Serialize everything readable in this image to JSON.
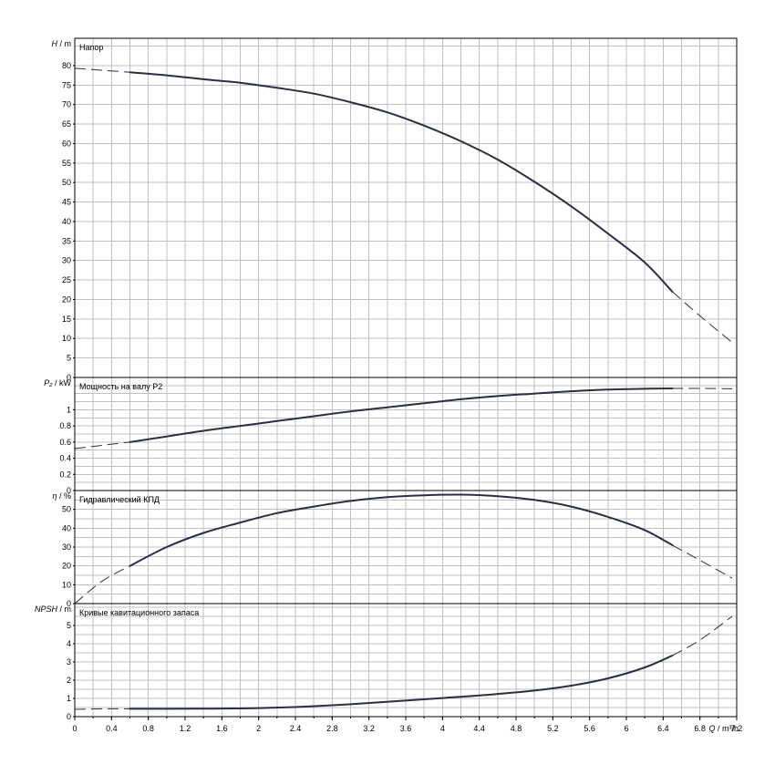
{
  "chart_data": {
    "type": "line",
    "x_axis": {
      "label_symbol": "Q",
      "label_unit": "/ m³/h",
      "range": [
        0,
        7.2
      ],
      "minor_step": 0.2,
      "tick_labels": [
        "0",
        "0.4",
        "0.8",
        "1.2",
        "1.6",
        "2",
        "2.4",
        "2.8",
        "3.2",
        "3.6",
        "4",
        "4.4",
        "4.8",
        "5.2",
        "5.6",
        "6",
        "6.4",
        "6.8",
        "7.2"
      ],
      "tick_values": [
        0,
        0.4,
        0.8,
        1.2,
        1.6,
        2,
        2.4,
        2.8,
        3.2,
        3.6,
        4,
        4.4,
        4.8,
        5.2,
        5.6,
        6,
        6.4,
        6.8,
        7.2
      ]
    },
    "panels": [
      {
        "id": "head",
        "title": "Напор",
        "ylabel_symbol": "H",
        "ylabel_unit": "/ m",
        "ylim": [
          0,
          87
        ],
        "grid_step": 5,
        "tick_values": [
          0,
          5,
          10,
          15,
          20,
          25,
          30,
          35,
          40,
          45,
          50,
          55,
          60,
          65,
          70,
          75,
          80
        ],
        "tick_labels": [
          "0",
          "5",
          "10",
          "15",
          "20",
          "25",
          "30",
          "35",
          "40",
          "45",
          "50",
          "55",
          "60",
          "65",
          "70",
          "75",
          "80"
        ],
        "solid": [
          [
            0.6,
            78.3
          ],
          [
            1.0,
            77.5
          ],
          [
            1.4,
            76.5
          ],
          [
            1.8,
            75.6
          ],
          [
            2.2,
            74.3
          ],
          [
            2.6,
            72.8
          ],
          [
            3.0,
            70.6
          ],
          [
            3.4,
            68.0
          ],
          [
            3.8,
            64.6
          ],
          [
            4.2,
            60.6
          ],
          [
            4.6,
            55.9
          ],
          [
            5.0,
            50.2
          ],
          [
            5.4,
            43.9
          ],
          [
            5.8,
            36.9
          ],
          [
            6.2,
            29.5
          ],
          [
            6.5,
            22.0
          ]
        ],
        "dashed": [
          [
            0,
            79.3
          ],
          [
            0.3,
            78.8
          ],
          [
            0.6,
            78.3
          ]
        ],
        "dashed_tail": [
          [
            6.5,
            22.0
          ],
          [
            6.8,
            15.8
          ],
          [
            7.15,
            9.0
          ]
        ]
      },
      {
        "id": "power",
        "title": "Мощность на валу P2",
        "ylabel_symbol": "P₂",
        "ylabel_unit": "/ kW",
        "ylim": [
          0,
          1.4
        ],
        "grid_step": 0.1,
        "tick_values": [
          0,
          0.2,
          0.4,
          0.6,
          0.8,
          1.0
        ],
        "tick_labels": [
          "0",
          "0.2",
          "0.4",
          "0.6",
          "0.8",
          "1"
        ],
        "solid": [
          [
            0.6,
            0.6
          ],
          [
            1.0,
            0.67
          ],
          [
            1.4,
            0.74
          ],
          [
            1.8,
            0.8
          ],
          [
            2.2,
            0.86
          ],
          [
            2.6,
            0.92
          ],
          [
            3.0,
            0.98
          ],
          [
            3.4,
            1.03
          ],
          [
            3.8,
            1.08
          ],
          [
            4.2,
            1.13
          ],
          [
            4.6,
            1.17
          ],
          [
            5.0,
            1.2
          ],
          [
            5.4,
            1.23
          ],
          [
            5.8,
            1.25
          ],
          [
            6.2,
            1.26
          ],
          [
            6.5,
            1.265
          ]
        ],
        "dashed": [
          [
            0,
            0.52
          ],
          [
            0.3,
            0.56
          ],
          [
            0.6,
            0.6
          ]
        ],
        "dashed_tail": [
          [
            6.5,
            1.265
          ],
          [
            6.8,
            1.265
          ],
          [
            7.15,
            1.26
          ]
        ]
      },
      {
        "id": "efficiency",
        "title": "Гидравлический КПД",
        "ylabel_symbol": "η",
        "ylabel_unit": "/ %",
        "ylim": [
          0,
          60
        ],
        "grid_step": 5,
        "tick_values": [
          0,
          10,
          20,
          30,
          40,
          50
        ],
        "tick_labels": [
          "0",
          "10",
          "20",
          "30",
          "40",
          "50"
        ],
        "solid": [
          [
            0.6,
            20
          ],
          [
            1.0,
            30
          ],
          [
            1.4,
            37.5
          ],
          [
            1.8,
            43
          ],
          [
            2.2,
            48
          ],
          [
            2.6,
            51.5
          ],
          [
            3.0,
            54.5
          ],
          [
            3.4,
            56.5
          ],
          [
            3.8,
            57.5
          ],
          [
            4.2,
            57.8
          ],
          [
            4.6,
            57
          ],
          [
            5.0,
            55
          ],
          [
            5.4,
            51.5
          ],
          [
            5.8,
            46
          ],
          [
            6.2,
            39
          ],
          [
            6.5,
            31
          ]
        ],
        "dashed": [
          [
            0,
            0
          ],
          [
            0.3,
            12
          ],
          [
            0.6,
            20
          ]
        ],
        "dashed_tail": [
          [
            6.5,
            31
          ],
          [
            6.8,
            23
          ],
          [
            7.15,
            13.5
          ]
        ]
      },
      {
        "id": "npsh",
        "title": "Кривые кавитационного запаса",
        "ylabel_symbol": "NPSH",
        "ylabel_unit": "/ m",
        "ylim": [
          0,
          6.2
        ],
        "grid_step": 0.5,
        "tick_values": [
          0,
          1,
          2,
          3,
          4,
          5
        ],
        "tick_labels": [
          "0",
          "1",
          "2",
          "3",
          "4",
          "5"
        ],
        "solid": [
          [
            0.6,
            0.43
          ],
          [
            1.0,
            0.43
          ],
          [
            1.5,
            0.44
          ],
          [
            2.0,
            0.47
          ],
          [
            2.5,
            0.55
          ],
          [
            3.0,
            0.68
          ],
          [
            3.5,
            0.85
          ],
          [
            4.0,
            1.02
          ],
          [
            4.5,
            1.2
          ],
          [
            5.0,
            1.43
          ],
          [
            5.4,
            1.7
          ],
          [
            5.8,
            2.1
          ],
          [
            6.2,
            2.7
          ],
          [
            6.5,
            3.35
          ]
        ],
        "dashed": [
          [
            0,
            0.4
          ],
          [
            0.3,
            0.43
          ],
          [
            0.6,
            0.43
          ]
        ],
        "dashed_tail": [
          [
            6.5,
            3.35
          ],
          [
            6.8,
            4.2
          ],
          [
            7.15,
            5.5
          ]
        ]
      }
    ]
  }
}
